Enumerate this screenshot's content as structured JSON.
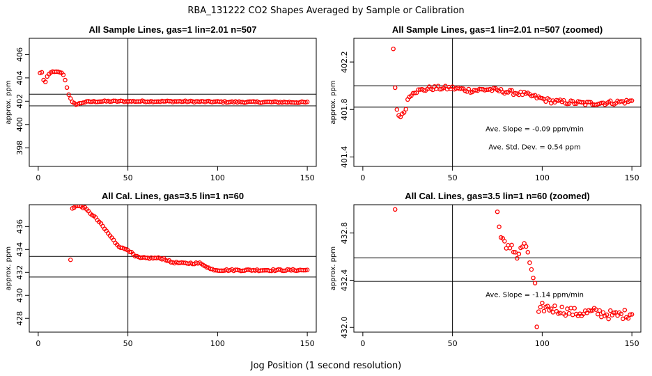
{
  "main_title": "RBA_131222  CO2 Shapes Averaged by Sample or Calibration",
  "xlabel": "Jog Position (1 second resolution)",
  "colors": {
    "points": "#ff0000",
    "axes": "#000000",
    "background": "#ffffff"
  },
  "chart_data": [
    {
      "type": "scatter",
      "title": "All Sample Lines, gas=1 lin=2.01 n=507",
      "ylabel": "approx. ppm",
      "xlim": [
        -5,
        155
      ],
      "ylim": [
        396.4,
        407.4
      ],
      "xticks": [
        0,
        50,
        100,
        150
      ],
      "yticks": [
        398,
        400,
        402,
        404,
        406
      ],
      "vline": 50,
      "hlines": [
        401.6,
        402.6
      ],
      "annotations": [],
      "segments": [
        [
          [
            1,
            404.4
          ],
          [
            2,
            404.5
          ],
          [
            3,
            403.8
          ],
          [
            4,
            403.6
          ],
          [
            5,
            404.1
          ],
          [
            6,
            404.3
          ],
          [
            7,
            404.5
          ],
          [
            8,
            404.5
          ],
          [
            9,
            404.5
          ],
          [
            10,
            404.5
          ],
          [
            11,
            404.5
          ],
          [
            12,
            404.5
          ],
          [
            13,
            404.4
          ],
          [
            14,
            404.3
          ],
          [
            15,
            403.8
          ],
          [
            16,
            403.2
          ],
          [
            17,
            402.6
          ],
          [
            18,
            402.2
          ],
          [
            19,
            401.9
          ],
          [
            20,
            401.8
          ],
          [
            21,
            401.75
          ],
          [
            22,
            401.75
          ],
          [
            23,
            401.8
          ],
          [
            24,
            401.85
          ],
          [
            25,
            401.9
          ],
          [
            28,
            401.95
          ],
          [
            34,
            401.98
          ],
          [
            40,
            401.99
          ],
          [
            50,
            401.99
          ],
          [
            80,
            401.98
          ],
          [
            110,
            401.93
          ],
          [
            130,
            401.92
          ],
          [
            150,
            401.9
          ]
        ]
      ],
      "noise": 0.06
    },
    {
      "type": "scatter",
      "title": "All Sample Lines, gas=1 lin=2.01 n=507 (zoomed)",
      "ylabel": "approx. ppm",
      "xlim": [
        -5,
        155
      ],
      "ylim": [
        401.32,
        402.4
      ],
      "xticks": [
        0,
        50,
        100,
        150
      ],
      "yticks": [
        401.4,
        401.8,
        402.2
      ],
      "vline": 50,
      "hlines": [
        401.82,
        402.0
      ],
      "annotations": [
        "Ave. Slope =  -0.09  ppm/min",
        "Ave. Std. Dev. =  0.54  ppm"
      ],
      "segments": [
        [
          [
            17,
            402.3
          ],
          [
            18,
            401.99
          ],
          [
            19,
            401.8
          ],
          [
            20,
            401.75
          ],
          [
            21,
            401.75
          ],
          [
            22,
            401.75
          ],
          [
            23,
            401.78
          ],
          [
            24,
            401.82
          ],
          [
            25,
            401.88
          ],
          [
            26,
            401.91
          ],
          [
            28,
            401.95
          ],
          [
            32,
            401.96
          ],
          [
            38,
            401.98
          ],
          [
            50,
            401.98
          ],
          [
            60,
            401.96
          ],
          [
            70,
            401.97
          ],
          [
            80,
            401.95
          ],
          [
            90,
            401.93
          ],
          [
            100,
            401.89
          ],
          [
            105,
            401.87
          ],
          [
            115,
            401.86
          ],
          [
            125,
            401.85
          ],
          [
            140,
            401.86
          ],
          [
            150,
            401.87
          ]
        ]
      ],
      "noise": 0.018
    },
    {
      "type": "scatter",
      "title": "All Cal. Lines, gas=3.5 lin=1 n=60",
      "ylabel": "approx. ppm",
      "xlim": [
        -5,
        155
      ],
      "ylim": [
        426.8,
        437.9
      ],
      "xticks": [
        0,
        50,
        100,
        150
      ],
      "yticks": [
        428,
        430,
        432,
        434,
        436
      ],
      "vline": 50,
      "hlines": [
        431.6,
        433.4
      ],
      "annotations": [],
      "singles": [
        [
          18,
          433.1
        ]
      ],
      "segments": [
        [
          [
            19,
            437.6
          ],
          [
            21,
            437.8
          ],
          [
            24,
            437.75
          ],
          [
            26,
            437.6
          ],
          [
            28,
            437.3
          ],
          [
            31,
            436.9
          ],
          [
            34,
            436.4
          ],
          [
            37,
            435.8
          ],
          [
            40,
            435.2
          ],
          [
            43,
            434.6
          ],
          [
            45,
            434.3
          ],
          [
            47,
            434.1
          ],
          [
            50,
            434.0
          ],
          [
            52,
            433.7
          ],
          [
            54,
            433.4
          ],
          [
            57,
            433.25
          ],
          [
            62,
            433.25
          ],
          [
            66,
            433.25
          ],
          [
            70,
            433.2
          ],
          [
            74,
            432.9
          ],
          [
            80,
            432.8
          ],
          [
            86,
            432.8
          ],
          [
            90,
            432.8
          ],
          [
            93,
            432.6
          ],
          [
            96,
            432.3
          ],
          [
            100,
            432.2
          ],
          [
            110,
            432.2
          ],
          [
            120,
            432.2
          ],
          [
            130,
            432.2
          ],
          [
            140,
            432.2
          ],
          [
            150,
            432.2
          ]
        ]
      ],
      "noise": 0.07
    },
    {
      "type": "scatter",
      "title": "All Cal. Lines, gas=3.5 lin=1 n=60 (zoomed)",
      "ylabel": "approx. ppm",
      "xlim": [
        -5,
        155
      ],
      "ylim": [
        431.96,
        433.04
      ],
      "xticks": [
        0,
        50,
        100,
        150
      ],
      "yticks": [
        432.0,
        432.4,
        432.8
      ],
      "vline": 50,
      "hlines": [
        432.39,
        432.59
      ],
      "annotations": [
        "Ave. Slope =  -1.14  ppm/min"
      ],
      "singles": [
        [
          18,
          433.0
        ],
        [
          75,
          432.98
        ]
      ],
      "segments": [
        [
          [
            76,
            432.85
          ],
          [
            78,
            432.75
          ],
          [
            80,
            432.65
          ],
          [
            83,
            432.7
          ],
          [
            86,
            432.6
          ],
          [
            88,
            432.65
          ],
          [
            90,
            432.72
          ],
          [
            92,
            432.6
          ],
          [
            94,
            432.5
          ],
          [
            96,
            432.35
          ],
          [
            97,
            432.0
          ],
          [
            98,
            432.1
          ],
          [
            100,
            432.17
          ],
          [
            110,
            432.15
          ],
          [
            120,
            432.12
          ],
          [
            130,
            432.13
          ],
          [
            140,
            432.1
          ],
          [
            150,
            432.12
          ]
        ]
      ],
      "noise": 0.04
    }
  ]
}
